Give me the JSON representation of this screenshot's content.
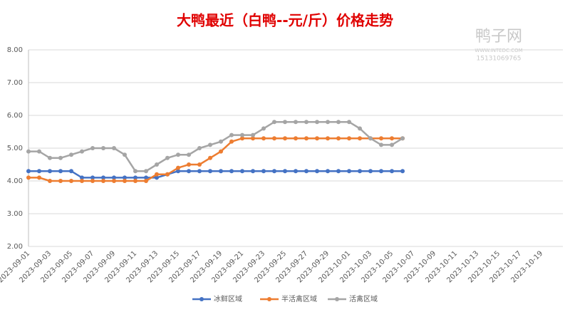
{
  "chart_data": {
    "type": "line",
    "title": "大鸭最近（白鸭--元/斤）价格走势",
    "watermark": [
      "鸭子网",
      "WWW.INTEDC.COM",
      "15131069765"
    ],
    "categories": [
      "2023-09-01",
      null,
      "2023-09-03",
      null,
      "2023-09-05",
      null,
      "2023-09-07",
      null,
      "2023-09-09",
      null,
      "2023-09-11",
      null,
      "2023-09-13",
      null,
      "2023-09-15",
      null,
      "2023-09-17",
      null,
      "2023-09-19",
      null,
      "2023-09-21",
      null,
      "2023-09-23",
      null,
      "2023-09-25",
      null,
      "2023-09-27",
      null,
      "2023-09-29",
      null,
      "2023-10-01",
      null,
      "2023-10-03",
      null,
      "2023-10-05",
      null,
      "2023-10-07",
      null,
      "2023-10-09",
      null,
      "2023-10-11",
      null,
      "2023-10-13",
      null,
      "2023-10-15",
      null,
      "2023-10-17",
      null,
      "2023-10-19",
      null,
      null
    ],
    "series": [
      {
        "name": "冰鲜区域",
        "color": "#4472c4",
        "values": [
          4.3,
          4.3,
          4.3,
          4.3,
          4.3,
          4.1,
          4.1,
          4.1,
          4.1,
          4.1,
          4.1,
          4.1,
          4.1,
          4.2,
          4.3,
          4.3,
          4.3,
          4.3,
          4.3,
          4.3,
          4.3,
          4.3,
          4.3,
          4.3,
          4.3,
          4.3,
          4.3,
          4.3,
          4.3,
          4.3,
          4.3,
          4.3,
          4.3,
          4.3,
          4.3,
          4.3,
          null,
          null,
          null,
          null,
          null,
          null,
          null,
          null,
          null,
          null,
          null,
          null,
          null,
          null,
          null
        ]
      },
      {
        "name": "半活禽区域",
        "color": "#ed7d31",
        "values": [
          4.1,
          4.1,
          4.0,
          4.0,
          4.0,
          4.0,
          4.0,
          4.0,
          4.0,
          4.0,
          4.0,
          4.0,
          4.2,
          4.2,
          4.4,
          4.5,
          4.5,
          4.7,
          4.9,
          5.2,
          5.3,
          5.3,
          5.3,
          5.3,
          5.3,
          5.3,
          5.3,
          5.3,
          5.3,
          5.3,
          5.3,
          5.3,
          5.3,
          5.3,
          5.3,
          5.3,
          null,
          null,
          null,
          null,
          null,
          null,
          null,
          null,
          null,
          null,
          null,
          null,
          null,
          null,
          null
        ]
      },
      {
        "name": "活禽区域",
        "color": "#a5a5a5",
        "values": [
          4.9,
          4.9,
          4.7,
          4.7,
          4.8,
          4.9,
          5.0,
          5.0,
          5.0,
          4.8,
          4.3,
          4.3,
          4.5,
          4.7,
          4.8,
          4.8,
          5.0,
          5.1,
          5.2,
          5.4,
          5.4,
          5.4,
          5.6,
          5.8,
          5.8,
          5.8,
          5.8,
          5.8,
          5.8,
          5.8,
          5.8,
          5.6,
          5.3,
          5.1,
          5.1,
          5.3,
          null,
          null,
          null,
          null,
          null,
          null,
          null,
          null,
          null,
          null,
          null,
          null,
          null,
          null,
          null
        ]
      }
    ],
    "ylim": [
      2,
      8
    ],
    "yticks": [
      {
        "value": 2,
        "label": "2.00"
      },
      {
        "value": 3,
        "label": "3.00"
      },
      {
        "value": 4,
        "label": "4.00"
      },
      {
        "value": 5,
        "label": "5.00"
      },
      {
        "value": 6,
        "label": "6.00"
      },
      {
        "value": 7,
        "label": "7.00"
      },
      {
        "value": 8,
        "label": "8.00"
      }
    ],
    "grid": true,
    "legend": "bottom"
  }
}
